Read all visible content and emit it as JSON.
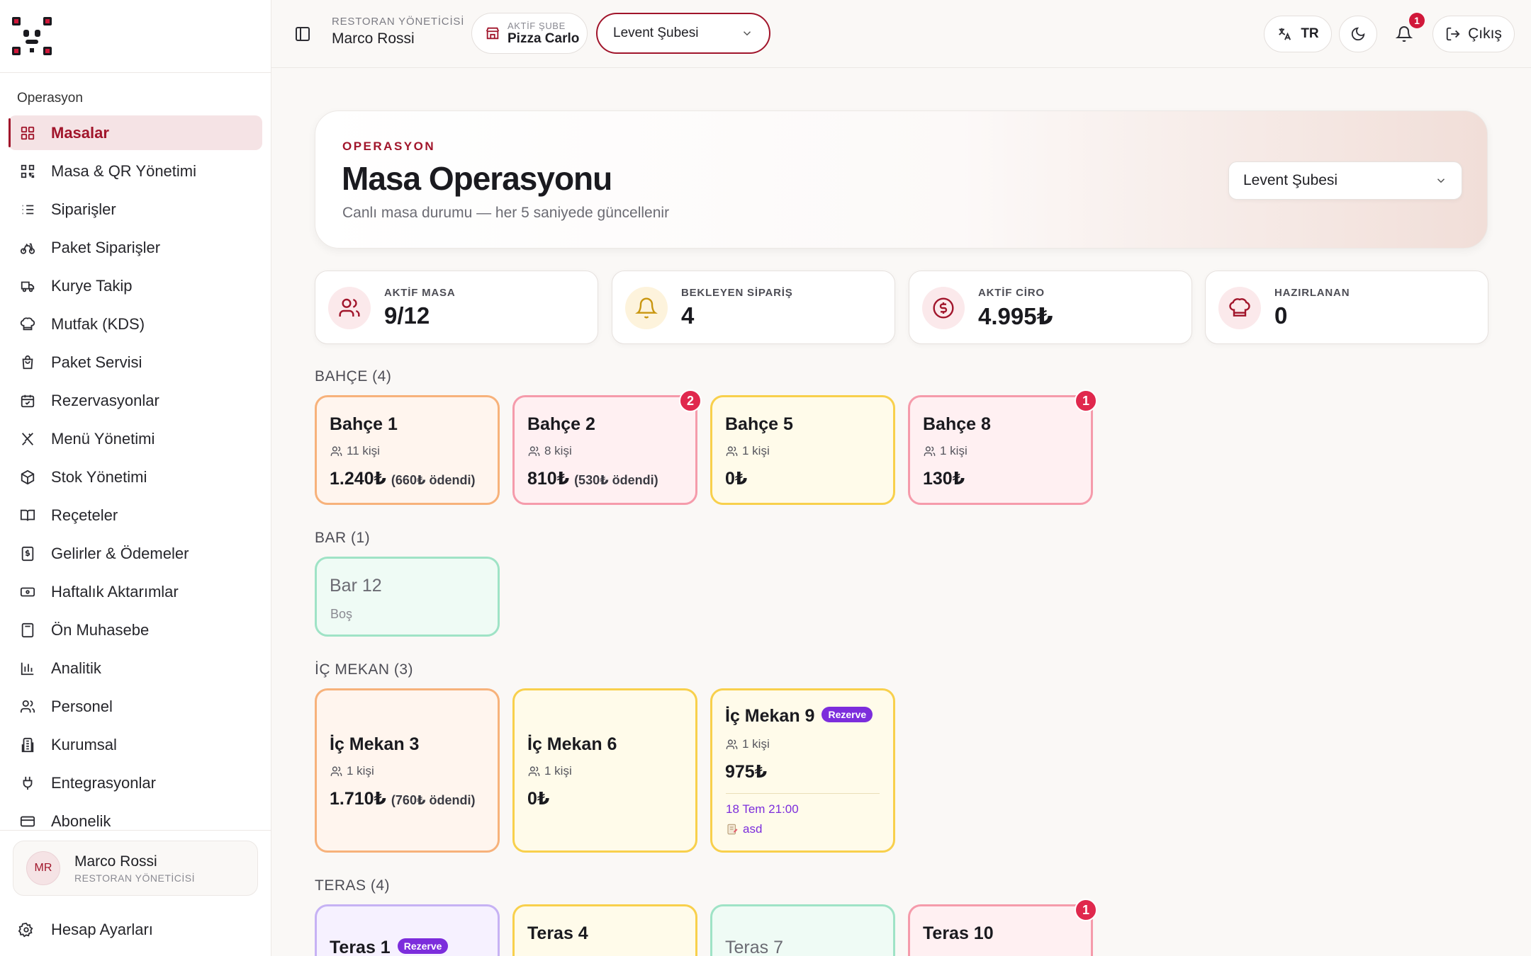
{
  "sidebar": {
    "section": "Operasyon",
    "items": [
      {
        "label": "Masalar",
        "icon": "grid-icon"
      },
      {
        "label": "Masa & QR Yönetimi",
        "icon": "qr-icon"
      },
      {
        "label": "Siparişler",
        "icon": "list-icon"
      },
      {
        "label": "Paket Siparişler",
        "icon": "bike-icon"
      },
      {
        "label": "Kurye Takip",
        "icon": "truck-icon"
      },
      {
        "label": "Mutfak (KDS)",
        "icon": "chef-hat-icon"
      },
      {
        "label": "Paket Servisi",
        "icon": "bag-icon"
      },
      {
        "label": "Rezervasyonlar",
        "icon": "calendar-icon"
      },
      {
        "label": "Menü Yönetimi",
        "icon": "utensils-icon"
      },
      {
        "label": "Stok Yönetimi",
        "icon": "box-icon"
      },
      {
        "label": "Reçeteler",
        "icon": "book-icon"
      },
      {
        "label": "Gelirler & Ödemeler",
        "icon": "receipt-icon"
      },
      {
        "label": "Haftalık Aktarımlar",
        "icon": "banknote-icon"
      },
      {
        "label": "Ön Muhasebe",
        "icon": "calculator-icon"
      },
      {
        "label": "Analitik",
        "icon": "bar-chart-icon"
      },
      {
        "label": "Personel",
        "icon": "users-icon"
      },
      {
        "label": "Kurumsal",
        "icon": "building-icon"
      },
      {
        "label": "Entegrasyonlar",
        "icon": "plug-icon"
      },
      {
        "label": "Abonelik",
        "icon": "credit-card-icon"
      }
    ],
    "user": {
      "initials": "MR",
      "name": "Marco Rossi",
      "role": "RESTORAN YÖNETİCİSİ"
    },
    "settings_label": "Hesap Ayarları"
  },
  "topbar": {
    "role": "RESTORAN YÖNETİCİSİ",
    "name": "Marco Rossi",
    "active_branch_label": "AKTİF ŞUBE",
    "active_branch": "Pizza Carlo",
    "branch_select": "Levent Şubesi",
    "lang": "TR",
    "notifications": "1",
    "logout": "Çıkış"
  },
  "hero": {
    "kicker": "OPERASYON",
    "title": "Masa Operasyonu",
    "subtitle": "Canlı masa durumu — her 5 saniyede güncellenir",
    "branch": "Levent Şubesi"
  },
  "stats": [
    {
      "label": "AKTİF MASA",
      "value": "9/12",
      "icon": "users-icon"
    },
    {
      "label": "BEKLEYEN SİPARİŞ",
      "value": "4",
      "icon": "bell-icon"
    },
    {
      "label": "AKTİF CİRO",
      "value": "4.995₺",
      "icon": "dollar-circle-icon"
    },
    {
      "label": "HAZIRLANAN",
      "value": "0",
      "icon": "chef-hat-icon"
    }
  ],
  "groups": [
    {
      "label": "BAHÇE (4)"
    },
    {
      "label": "BAR (1)"
    },
    {
      "label": "İÇ MEKAN (3)"
    },
    {
      "label": "TERAS (4)"
    }
  ],
  "tables": {
    "bahce1": {
      "name": "Bahçe 1",
      "people": "11 kişi",
      "amount": "1.240₺",
      "paid": "(660₺ ödendi)"
    },
    "bahce2": {
      "name": "Bahçe 2",
      "people": "8 kişi",
      "amount": "810₺",
      "paid": "(530₺ ödendi)",
      "badge": "2"
    },
    "bahce5": {
      "name": "Bahçe 5",
      "people": "1 kişi",
      "amount": "0₺"
    },
    "bahce8": {
      "name": "Bahçe 8",
      "people": "1 kişi",
      "amount": "130₺",
      "badge": "1"
    },
    "bar12": {
      "name": "Bar 12",
      "status": "Boş"
    },
    "icmekan3": {
      "name": "İç Mekan 3",
      "people": "1 kişi",
      "amount": "1.710₺",
      "paid": "(760₺ ödendi)"
    },
    "icmekan6": {
      "name": "İç Mekan 6",
      "people": "1 kişi",
      "amount": "0₺"
    },
    "icmekan9": {
      "name": "İç Mekan 9",
      "tag": "Rezerve",
      "people": "1 kişi",
      "amount": "975₺",
      "res_time": "18 Tem 21:00",
      "res_note": "asd"
    },
    "teras1": {
      "name": "Teras 1",
      "tag": "Rezerve"
    },
    "teras4": {
      "name": "Teras 4"
    },
    "teras7": {
      "name": "Teras 7"
    },
    "teras10": {
      "name": "Teras 10",
      "badge": "1"
    }
  },
  "colors": {
    "brand": "#a1152b",
    "badge": "#e0284d",
    "reserve": "#7c2ddc"
  }
}
